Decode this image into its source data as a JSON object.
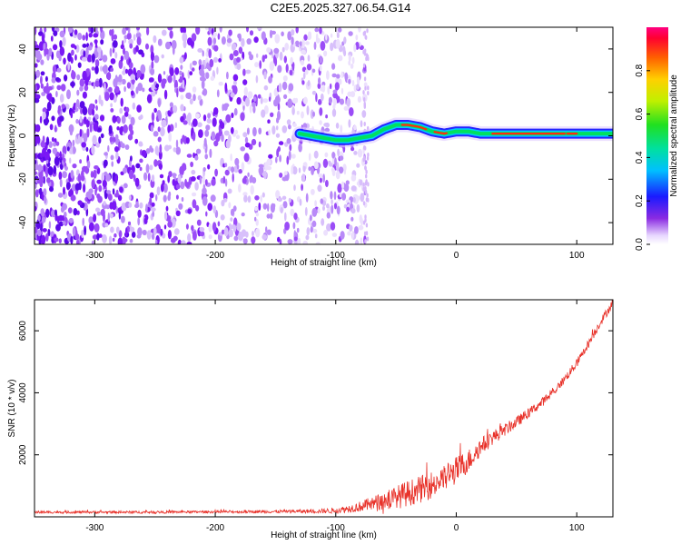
{
  "title": "C2E5.2025.327.06.54.G14",
  "colors": {
    "speckle": "#6a10f0",
    "trace_low": "#1010ff",
    "trace_mid": "#00e060",
    "trace_high": "#ff2a10",
    "snr_line": "#e8322a"
  },
  "chart_data": [
    {
      "type": "heatmap",
      "name": "spectrogram",
      "xlabel": "Height of straight line (km)",
      "ylabel": "Frequency (Hz)",
      "xlim": [
        -350,
        130
      ],
      "ylim": [
        -50,
        50
      ],
      "xticks": [
        "-300",
        "-200",
        "-100",
        "0",
        "100"
      ],
      "xtick_values": [
        -300,
        -200,
        -100,
        0,
        100
      ],
      "yticks": [
        "-40",
        "-20",
        "0",
        "20",
        "40"
      ],
      "ytick_values": [
        -40,
        -20,
        0,
        20,
        40
      ],
      "noise_region_km": [
        -350,
        -75
      ],
      "signal_onset_km": -130,
      "frequency_track": {
        "x": [
          -130,
          -120,
          -110,
          -100,
          -90,
          -80,
          -70,
          -60,
          -50,
          -40,
          -30,
          -20,
          -10,
          0,
          10,
          20,
          40,
          60,
          80,
          100,
          130
        ],
        "y": [
          1,
          0,
          -1,
          -2,
          -2,
          -1,
          0,
          3,
          5,
          5,
          4,
          2,
          1,
          2,
          2,
          1,
          1,
          1,
          1,
          1,
          1
        ]
      }
    },
    {
      "type": "colorbar",
      "name": "colorbar",
      "label": "Normalized spectral amplitude",
      "ticks": [
        "0.0",
        "0.2",
        "0.4",
        "0.6",
        "0.8"
      ],
      "tick_values": [
        0.0,
        0.2,
        0.4,
        0.6,
        0.8
      ],
      "range": [
        0,
        1
      ]
    },
    {
      "type": "line",
      "name": "snr",
      "xlabel": "Height of straight line (km)",
      "ylabel": "SNR (10 * v/v)",
      "xlim": [
        -350,
        130
      ],
      "ylim": [
        0,
        7000
      ],
      "xticks": [
        "-300",
        "-200",
        "-100",
        "0",
        "100"
      ],
      "xtick_values": [
        -300,
        -200,
        -100,
        0,
        100
      ],
      "yticks": [
        "2000",
        "4000",
        "6000"
      ],
      "ytick_values": [
        2000,
        4000,
        6000
      ],
      "x": [
        -350,
        -300,
        -250,
        -200,
        -150,
        -120,
        -100,
        -90,
        -80,
        -70,
        -60,
        -50,
        -40,
        -30,
        -20,
        -10,
        0,
        10,
        20,
        30,
        40,
        50,
        60,
        70,
        80,
        90,
        100,
        110,
        120,
        130
      ],
      "y": [
        150,
        150,
        150,
        160,
        170,
        180,
        200,
        260,
        330,
        420,
        520,
        620,
        760,
        880,
        1040,
        1220,
        1500,
        1800,
        2250,
        2550,
        2800,
        3050,
        3350,
        3650,
        4000,
        4450,
        4950,
        5600,
        6300,
        6900
      ],
      "noise_amplitude": [
        40,
        40,
        40,
        40,
        50,
        60,
        90,
        120,
        170,
        230,
        300,
        380,
        420,
        440,
        450,
        440,
        450,
        380,
        300,
        240,
        200,
        180,
        160,
        150,
        140,
        140,
        140,
        140,
        140,
        140
      ]
    }
  ]
}
